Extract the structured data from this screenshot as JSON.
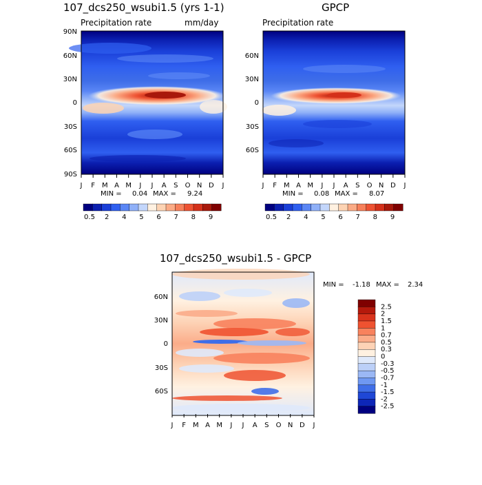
{
  "panels": {
    "left": {
      "title": "107_dcs250_wsubi1.5 (yrs 1-1)",
      "subtitle": "Precipitation rate",
      "units": "mm/day",
      "min_label": "MIN =",
      "min_value": "0.04",
      "max_label": "MAX =",
      "max_value": "9.24"
    },
    "right": {
      "title": "GPCP",
      "subtitle": "Precipitation rate",
      "min_label": "MIN =",
      "min_value": "0.08",
      "max_label": "MAX =",
      "max_value": "8.07"
    },
    "diff": {
      "title": "107_dcs250_wsubi1.5 - GPCP",
      "min_label": "MIN =",
      "min_value": "-1.18",
      "max_label": "MAX =",
      "max_value": "2.34"
    }
  },
  "axes": {
    "months": [
      "J",
      "F",
      "M",
      "A",
      "M",
      "J",
      "J",
      "A",
      "S",
      "O",
      "N",
      "D",
      "J"
    ],
    "lat_labels_left": [
      "90N",
      "60N",
      "30N",
      "0",
      "30S",
      "60S",
      "90S"
    ],
    "lat_labels_right": [
      "60N",
      "30N",
      "0",
      "30S",
      "60S"
    ],
    "lat_labels_diff": [
      "60N",
      "30N",
      "0",
      "30S",
      "60S"
    ]
  },
  "colorbars": {
    "precip": {
      "colors": [
        "#00007f",
        "#0b1fb0",
        "#1a3fd8",
        "#2f5ff0",
        "#5a86f5",
        "#8fb0f8",
        "#c3d6fb",
        "#fff1e1",
        "#fdd3b3",
        "#fbab86",
        "#f7805a",
        "#ee5232",
        "#d4301a",
        "#a8180b",
        "#7f0000"
      ],
      "labels": [
        "0.5",
        "2",
        "4",
        "5",
        "6",
        "7",
        "8",
        "9"
      ]
    },
    "diff": {
      "colors": [
        "#7f0000",
        "#b5190c",
        "#d9331c",
        "#ef5230",
        "#f8825d",
        "#fbac89",
        "#fdd3b6",
        "#fff1e1",
        "#dfe9fb",
        "#bcd0f8",
        "#9bb8f5",
        "#6f98f2",
        "#3f6ee8",
        "#1f47d6",
        "#0d26b8",
        "#00007f"
      ],
      "labels": [
        "2.5",
        "2",
        "1.5",
        "1",
        "0.7",
        "0.5",
        "0.3",
        "0",
        "-0.3",
        "-0.5",
        "-0.7",
        "-1",
        "-1.5",
        "-2",
        "-2.5"
      ]
    }
  },
  "chart_data": [
    {
      "type": "heatmap",
      "title": "107_dcs250_wsubi1.5 (yrs 1-1)",
      "subtitle": "Precipitation rate",
      "units": "mm/day",
      "x": "month (J..J)",
      "y": "latitude (90S..90N)",
      "min": 0.04,
      "max": 9.24,
      "levels": [
        0.5,
        1,
        2,
        3,
        4,
        4.5,
        5,
        5.5,
        6,
        6.5,
        7,
        7.5,
        8,
        8.5,
        9
      ]
    },
    {
      "type": "heatmap",
      "title": "GPCP",
      "subtitle": "Precipitation rate",
      "x": "month (J..J)",
      "y": "latitude (90S..90N)",
      "min": 0.08,
      "max": 8.07,
      "levels": [
        0.5,
        1,
        2,
        3,
        4,
        4.5,
        5,
        5.5,
        6,
        6.5,
        7,
        7.5,
        8,
        8.5,
        9
      ]
    },
    {
      "type": "heatmap",
      "title": "107_dcs250_wsubi1.5 - GPCP",
      "x": "month (J..J)",
      "y": "latitude (90S..90N)",
      "min": -1.18,
      "max": 2.34,
      "levels": [
        -2.5,
        -2,
        -1.5,
        -1,
        -0.7,
        -0.5,
        -0.3,
        0,
        0.3,
        0.5,
        0.7,
        1,
        1.5,
        2,
        2.5
      ]
    }
  ]
}
